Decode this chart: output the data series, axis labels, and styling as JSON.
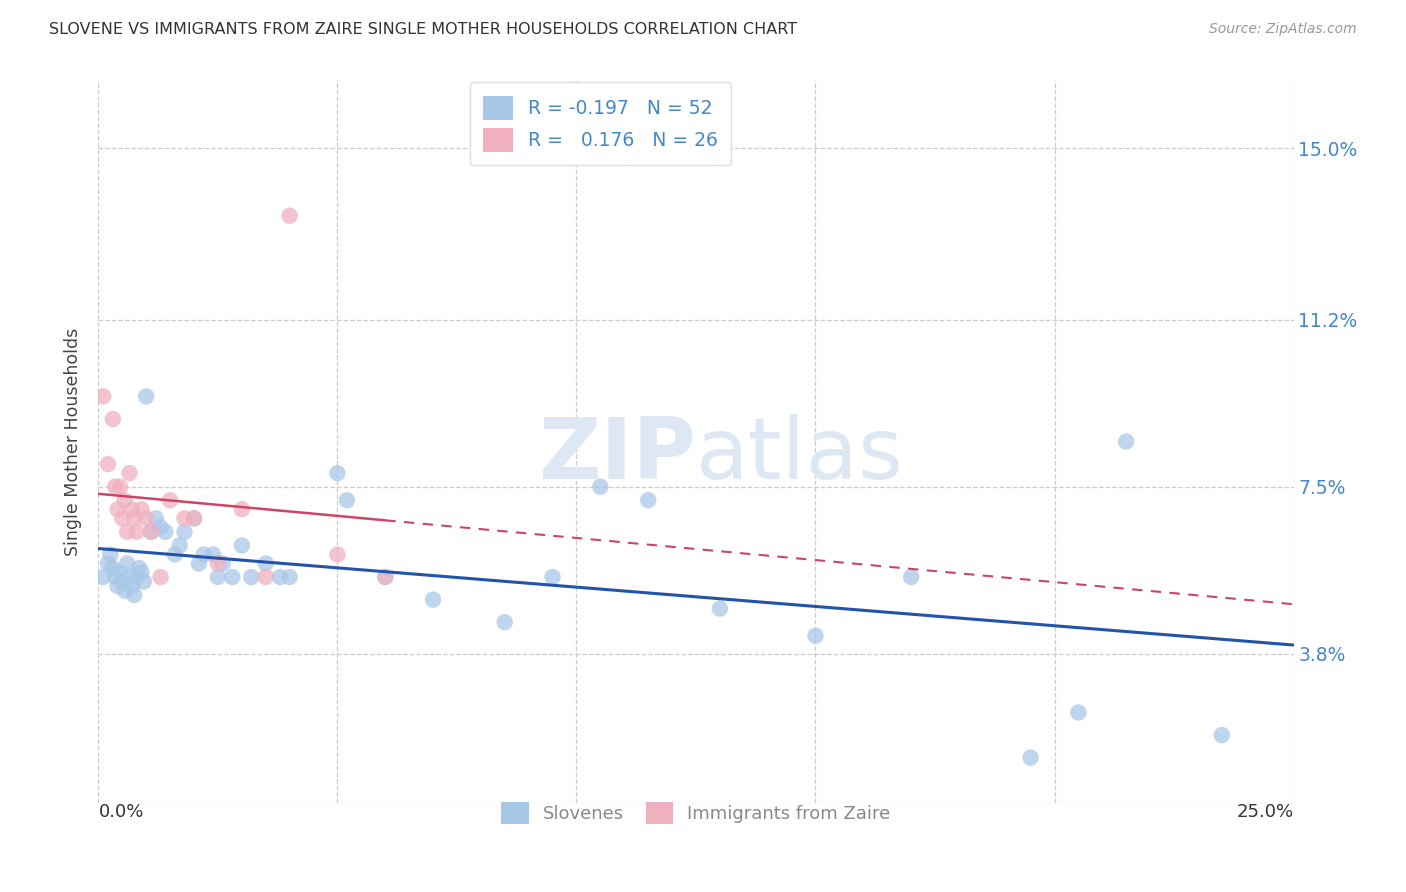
{
  "title": "SLOVENE VS IMMIGRANTS FROM ZAIRE SINGLE MOTHER HOUSEHOLDS CORRELATION CHART",
  "source": "Source: ZipAtlas.com",
  "ylabel": "Single Mother Households",
  "ytick_values": [
    3.8,
    7.5,
    11.2,
    15.0
  ],
  "ytick_labels": [
    "3.8%",
    "7.5%",
    "11.2%",
    "15.0%"
  ],
  "xlim": [
    0.0,
    25.0
  ],
  "ylim": [
    0.5,
    16.5
  ],
  "legend_r_slovene": "-0.197",
  "legend_n_slovene": "52",
  "legend_r_zaire": "0.176",
  "legend_n_zaire": "26",
  "color_slovene": "#a8c8e8",
  "color_zaire": "#f0b0c0",
  "line_color_slovene": "#2255aa",
  "line_color_zaire": "#cc4466",
  "watermark_color": "#dde8f4",
  "slovene_x": [
    0.1,
    0.2,
    0.25,
    0.3,
    0.35,
    0.4,
    0.45,
    0.5,
    0.55,
    0.6,
    0.65,
    0.7,
    0.75,
    0.8,
    0.85,
    0.9,
    0.95,
    1.0,
    1.1,
    1.2,
    1.3,
    1.4,
    1.6,
    1.7,
    1.8,
    2.0,
    2.1,
    2.2,
    2.4,
    2.5,
    2.6,
    2.8,
    3.0,
    3.2,
    3.5,
    3.8,
    4.0,
    5.0,
    5.2,
    6.0,
    7.0,
    8.5,
    9.5,
    10.5,
    11.5,
    13.0,
    15.0,
    17.0,
    19.5,
    20.5,
    21.5,
    23.5
  ],
  "slovene_y": [
    5.5,
    5.8,
    6.0,
    5.7,
    5.5,
    5.3,
    5.6,
    5.4,
    5.2,
    5.8,
    5.5,
    5.3,
    5.1,
    5.5,
    5.7,
    5.6,
    5.4,
    9.5,
    6.5,
    6.8,
    6.6,
    6.5,
    6.0,
    6.2,
    6.5,
    6.8,
    5.8,
    6.0,
    6.0,
    5.5,
    5.8,
    5.5,
    6.2,
    5.5,
    5.8,
    5.5,
    5.5,
    7.8,
    7.2,
    5.5,
    5.0,
    4.5,
    5.5,
    7.5,
    7.2,
    4.8,
    4.2,
    5.5,
    1.5,
    2.5,
    8.5,
    2.0
  ],
  "zaire_x": [
    0.1,
    0.2,
    0.3,
    0.35,
    0.4,
    0.45,
    0.5,
    0.55,
    0.6,
    0.65,
    0.7,
    0.75,
    0.8,
    0.9,
    1.0,
    1.1,
    1.3,
    1.5,
    1.8,
    2.0,
    2.5,
    3.0,
    3.5,
    4.0,
    5.0,
    6.0
  ],
  "zaire_y": [
    9.5,
    8.0,
    9.0,
    7.5,
    7.0,
    7.5,
    6.8,
    7.2,
    6.5,
    7.8,
    7.0,
    6.8,
    6.5,
    7.0,
    6.8,
    6.5,
    5.5,
    7.2,
    6.8,
    6.8,
    5.8,
    7.0,
    5.5,
    13.5,
    6.0,
    5.5
  ]
}
